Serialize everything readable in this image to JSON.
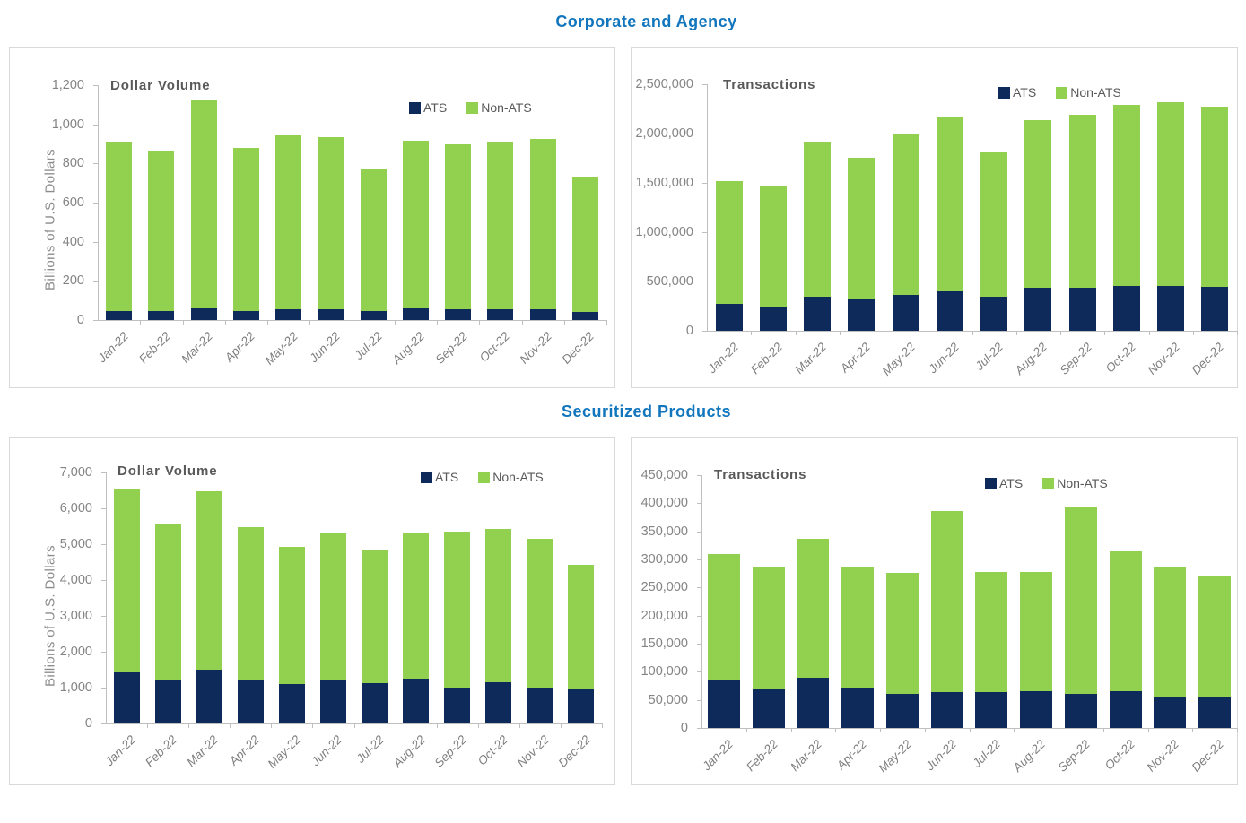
{
  "sections": [
    {
      "title": "Corporate and Agency"
    },
    {
      "title": "Securitized Products"
    }
  ],
  "colors": {
    "section_title_blue": "#1176bd",
    "ats_navy": "#0e2a5a",
    "non_ats_green": "#92d050",
    "axis_text_gray": "#848484",
    "chart_title_gray": "#595959",
    "axis_line_gray": "#bfbfbf",
    "panel_border_gray": "#d9d9d9"
  },
  "chart_data": [
    {
      "type": "bar",
      "stacked": true,
      "section": "Corporate and Agency",
      "title": "Dollar Volume",
      "ylabel": "Billions of U.S. Dollars",
      "ylim": [
        0,
        1200
      ],
      "ytick_step": 200,
      "grid": false,
      "legend_position": "top-right-inside",
      "legend": [
        "ATS",
        "Non-ATS"
      ],
      "categories": [
        "Jan-22",
        "Feb-22",
        "Mar-22",
        "Apr-22",
        "May-22",
        "Jun-22",
        "Jul-22",
        "Aug-22",
        "Sep-22",
        "Oct-22",
        "Nov-22",
        "Dec-22"
      ],
      "series": [
        {
          "name": "ATS",
          "color": "ats_navy",
          "values": [
            47,
            46,
            58,
            47,
            55,
            55,
            47,
            60,
            55,
            55,
            55,
            39
          ]
        },
        {
          "name": "Non-ATS",
          "color": "non_ats_green",
          "values": [
            863,
            819,
            1062,
            833,
            890,
            880,
            723,
            855,
            845,
            855,
            870,
            696
          ]
        }
      ]
    },
    {
      "type": "bar",
      "stacked": true,
      "section": "Corporate and Agency",
      "title": "Transactions",
      "ylabel": "",
      "ylim": [
        0,
        2500000
      ],
      "ytick_step": 500000,
      "grid": false,
      "legend_position": "top-right-inside",
      "legend": [
        "ATS",
        "Non-ATS"
      ],
      "categories": [
        "Jan-22",
        "Feb-22",
        "Mar-22",
        "Apr-22",
        "May-22",
        "Jun-22",
        "Jul-22",
        "Aug-22",
        "Sep-22",
        "Oct-22",
        "Nov-22",
        "Dec-22"
      ],
      "series": [
        {
          "name": "ATS",
          "color": "ats_navy",
          "values": [
            270000,
            250000,
            342000,
            323000,
            365000,
            398000,
            343000,
            432000,
            440000,
            458000,
            458000,
            443000
          ]
        },
        {
          "name": "Non-ATS",
          "color": "non_ats_green",
          "values": [
            1245000,
            1225000,
            1573000,
            1432000,
            1635000,
            1772000,
            1467000,
            1703000,
            1755000,
            1832000,
            1857000,
            1832000
          ]
        }
      ]
    },
    {
      "type": "bar",
      "stacked": true,
      "section": "Securitized Products",
      "title": "Dollar Volume",
      "ylabel": "Billions of U.S. Dollars",
      "ylim": [
        0,
        7000
      ],
      "ytick_step": 1000,
      "grid": false,
      "legend_position": "top-right-inside",
      "legend": [
        "ATS",
        "Non-ATS"
      ],
      "categories": [
        "Jan-22",
        "Feb-22",
        "Mar-22",
        "Apr-22",
        "May-22",
        "Jun-22",
        "Jul-22",
        "Aug-22",
        "Sep-22",
        "Oct-22",
        "Nov-22",
        "Dec-22"
      ],
      "series": [
        {
          "name": "ATS",
          "color": "ats_navy",
          "values": [
            1425,
            1220,
            1510,
            1230,
            1110,
            1190,
            1130,
            1260,
            1010,
            1140,
            1010,
            940
          ]
        },
        {
          "name": "Non-ATS",
          "color": "non_ats_green",
          "values": [
            5100,
            4320,
            4970,
            4250,
            3825,
            4120,
            3705,
            4050,
            4350,
            4285,
            4130,
            3495
          ]
        }
      ]
    },
    {
      "type": "bar",
      "stacked": true,
      "section": "Securitized Products",
      "title": "Transactions",
      "ylabel": "",
      "ylim": [
        0,
        450000
      ],
      "ytick_step": 50000,
      "grid": false,
      "legend_position": "top-right-inside",
      "legend": [
        "ATS",
        "Non-ATS"
      ],
      "categories": [
        "Jan-22",
        "Feb-22",
        "Mar-22",
        "Apr-22",
        "May-22",
        "Jun-22",
        "Jul-22",
        "Aug-22",
        "Sep-22",
        "Oct-22",
        "Nov-22",
        "Dec-22"
      ],
      "series": [
        {
          "name": "ATS",
          "color": "ats_navy",
          "values": [
            86000,
            70000,
            90000,
            72000,
            61000,
            64000,
            64000,
            66000,
            61000,
            66000,
            55000,
            55000
          ]
        },
        {
          "name": "Non-ATS",
          "color": "non_ats_green",
          "values": [
            224000,
            217000,
            247000,
            213000,
            215000,
            322000,
            213000,
            212000,
            333000,
            248000,
            232000,
            217000
          ]
        }
      ]
    }
  ]
}
